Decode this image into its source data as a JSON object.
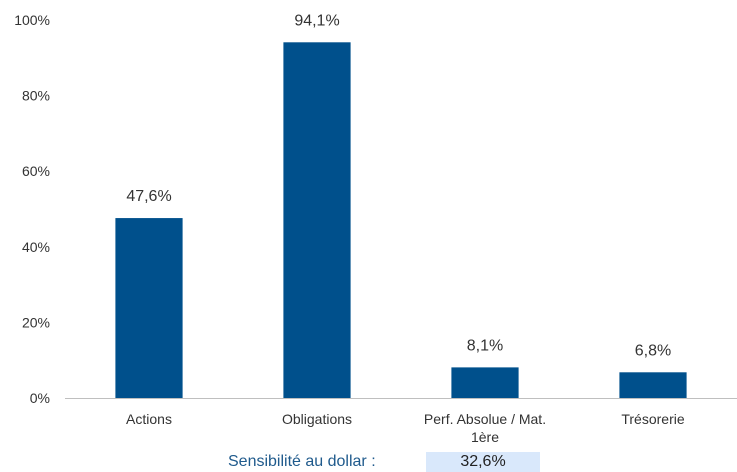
{
  "chart_data": {
    "type": "bar",
    "categories": [
      "Actions",
      "Obligations",
      "Perf. Absolue / Mat. 1ère",
      "Trésorerie"
    ],
    "category_lines": [
      [
        "Actions"
      ],
      [
        "Obligations"
      ],
      [
        "Perf. Absolue / Mat.",
        "1ère"
      ],
      [
        "Trésorerie"
      ]
    ],
    "values": [
      47.6,
      94.1,
      8.1,
      6.8
    ],
    "data_labels": [
      "47,6%",
      "94,1%",
      "8,1%",
      "6,8%"
    ],
    "ylim": [
      0,
      100
    ],
    "yticks": [
      0,
      20,
      40,
      60,
      80,
      100
    ],
    "ytick_labels": [
      "0%",
      "20%",
      "40%",
      "60%",
      "80%",
      "100%"
    ],
    "bar_color": "#00508c",
    "grid": false,
    "title": "",
    "xlabel": "",
    "ylabel": ""
  },
  "footer": {
    "label": "Sensibilité au dollar :",
    "value": "32,6%",
    "label_color": "#1f5a8c",
    "value_bg": "#d9e8fb"
  }
}
